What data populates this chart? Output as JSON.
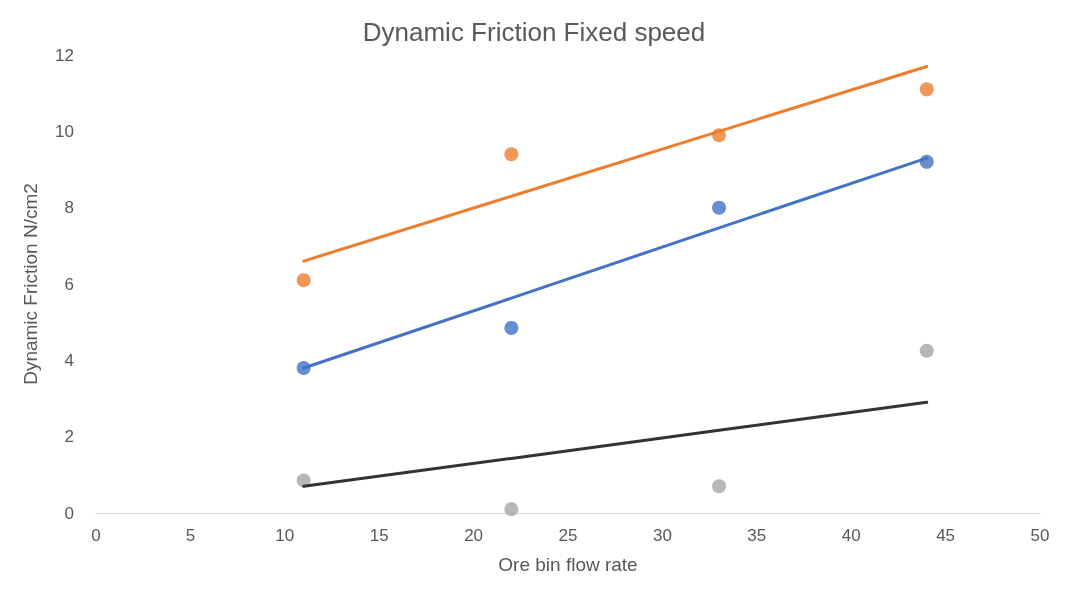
{
  "chart_data": {
    "type": "scatter",
    "title": "Dynamic Friction Fixed speed",
    "xlabel": "Ore bin flow rate",
    "ylabel": "Dynamic Friction N/cm2",
    "x": [
      11,
      22,
      33,
      44
    ],
    "series": [
      {
        "type": "scatter",
        "color": "#ed7d31",
        "values": [
          6.1,
          9.4,
          9.9,
          11.1
        ],
        "marker": "circle"
      },
      {
        "type": "scatter",
        "color": "#4472c4",
        "values": [
          3.8,
          4.85,
          8.0,
          9.2
        ],
        "marker": "circle"
      },
      {
        "type": "scatter",
        "color": "#a5a5a5",
        "values": [
          0.85,
          0.1,
          0.7,
          4.25
        ],
        "marker": "circle"
      },
      {
        "type": "line",
        "color": "#ed7d31",
        "values": [
          6.6,
          8.3,
          10.0,
          11.7
        ],
        "marker": "none"
      },
      {
        "type": "line",
        "color": "#4472c4",
        "values": [
          3.8,
          5.63,
          7.47,
          9.3
        ],
        "marker": "none"
      },
      {
        "type": "line",
        "color": "#333333",
        "values": [
          0.7,
          1.43,
          2.17,
          2.9
        ],
        "marker": "none"
      }
    ],
    "xlim": [
      0,
      50
    ],
    "xticks": [
      0,
      5,
      10,
      15,
      20,
      25,
      30,
      35,
      40,
      45,
      50
    ],
    "ylim": [
      0,
      12
    ],
    "yticks": [
      0,
      2,
      4,
      6,
      8,
      10,
      12
    ],
    "grid": false
  }
}
